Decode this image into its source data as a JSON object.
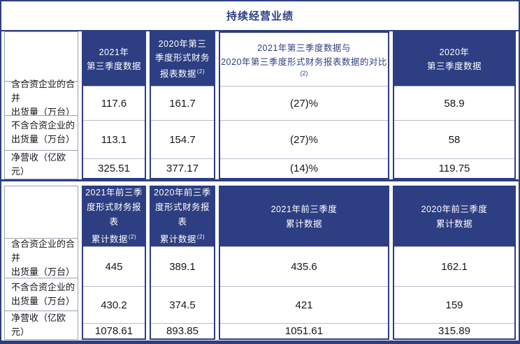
{
  "colors": {
    "primary": "#2d3e82",
    "separator": "#b7bdca",
    "label_border": "#9ba1ad",
    "header_text": "#ffffff",
    "body_text": "#15171c"
  },
  "title": "持续经营业绩",
  "row_labels": {
    "r1": [
      "含合资企业的合并",
      "出货量（万台）"
    ],
    "r2": [
      "不含合资企业的",
      "出货量（万台）"
    ],
    "r3": [
      "净营收（亿欧元）"
    ]
  },
  "section1": {
    "headers": {
      "col2": {
        "lines": [
          "2021年",
          "第三季度数据"
        ]
      },
      "col3": {
        "lines": [
          "2020年第三",
          "季度形式财务",
          "报表数据"
        ],
        "sup": "(2)"
      },
      "col4": {
        "lines": [
          "2021年第三季度数据与",
          "2020年第三季度形式财务报表数据的对比"
        ],
        "sup": "(2)"
      },
      "col5": {
        "lines": [
          "2020年",
          "第三季度数据"
        ]
      }
    },
    "rows": [
      {
        "col2": "117.6",
        "col3": "161.7",
        "col4": "(27)%",
        "col5": "58.9"
      },
      {
        "col2": "113.1",
        "col3": "154.7",
        "col4": "(27)%",
        "col5": "58"
      },
      {
        "col2": "325.51",
        "col3": "377.17",
        "col4": "(14)%",
        "col5": "119.75"
      }
    ]
  },
  "section2": {
    "headers": {
      "col2": {
        "lines": [
          "2021年前三季",
          "度形式财务报表",
          "累计数据"
        ],
        "sup": "(2)"
      },
      "col3": {
        "lines": [
          "2020年前三季",
          "度形式财务报表",
          "累计数据"
        ],
        "sup": "(2)"
      },
      "col4": {
        "lines": [
          "2021年前三季度",
          "累计数据"
        ]
      },
      "col5": {
        "lines": [
          "2020年前三季度",
          "累计数据"
        ]
      }
    },
    "rows": [
      {
        "col2": "445",
        "col3": "389.1",
        "col4": "435.6",
        "col5": "162.1"
      },
      {
        "col2": "430.2",
        "col3": "374.5",
        "col4": "421",
        "col5": "159"
      },
      {
        "col2": "1078.61",
        "col3": "893.85",
        "col4": "1051.61",
        "col5": "315.89"
      }
    ]
  }
}
